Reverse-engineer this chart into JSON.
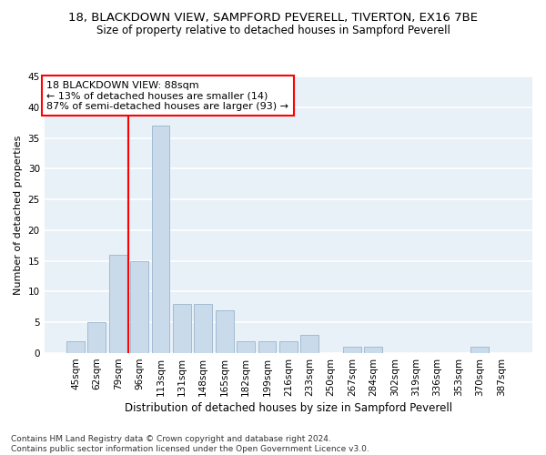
{
  "title1": "18, BLACKDOWN VIEW, SAMPFORD PEVERELL, TIVERTON, EX16 7BE",
  "title2": "Size of property relative to detached houses in Sampford Peverell",
  "xlabel": "Distribution of detached houses by size in Sampford Peverell",
  "ylabel": "Number of detached properties",
  "footnote": "Contains HM Land Registry data © Crown copyright and database right 2024.\nContains public sector information licensed under the Open Government Licence v3.0.",
  "categories": [
    "45sqm",
    "62sqm",
    "79sqm",
    "96sqm",
    "113sqm",
    "131sqm",
    "148sqm",
    "165sqm",
    "182sqm",
    "199sqm",
    "216sqm",
    "233sqm",
    "250sqm",
    "267sqm",
    "284sqm",
    "302sqm",
    "319sqm",
    "336sqm",
    "353sqm",
    "370sqm",
    "387sqm"
  ],
  "values": [
    2,
    5,
    16,
    15,
    37,
    8,
    8,
    7,
    2,
    2,
    2,
    3,
    0,
    1,
    1,
    0,
    0,
    0,
    0,
    1,
    0
  ],
  "bar_color": "#c9daea",
  "bar_edge_color": "#9ab5cc",
  "annotation_box_text": "18 BLACKDOWN VIEW: 88sqm\n← 13% of detached houses are smaller (14)\n87% of semi-detached houses are larger (93) →",
  "annotation_box_color": "white",
  "annotation_box_edge_color": "red",
  "vline_x_index": 3,
  "vline_color": "red",
  "ylim": [
    0,
    45
  ],
  "yticks": [
    0,
    5,
    10,
    15,
    20,
    25,
    30,
    35,
    40,
    45
  ],
  "background_color": "#e8f0f8",
  "grid_color": "white",
  "title1_fontsize": 9.5,
  "title2_fontsize": 8.5,
  "xlabel_fontsize": 8.5,
  "ylabel_fontsize": 8,
  "tick_fontsize": 7.5,
  "annotation_fontsize": 8,
  "footnote_fontsize": 6.5
}
